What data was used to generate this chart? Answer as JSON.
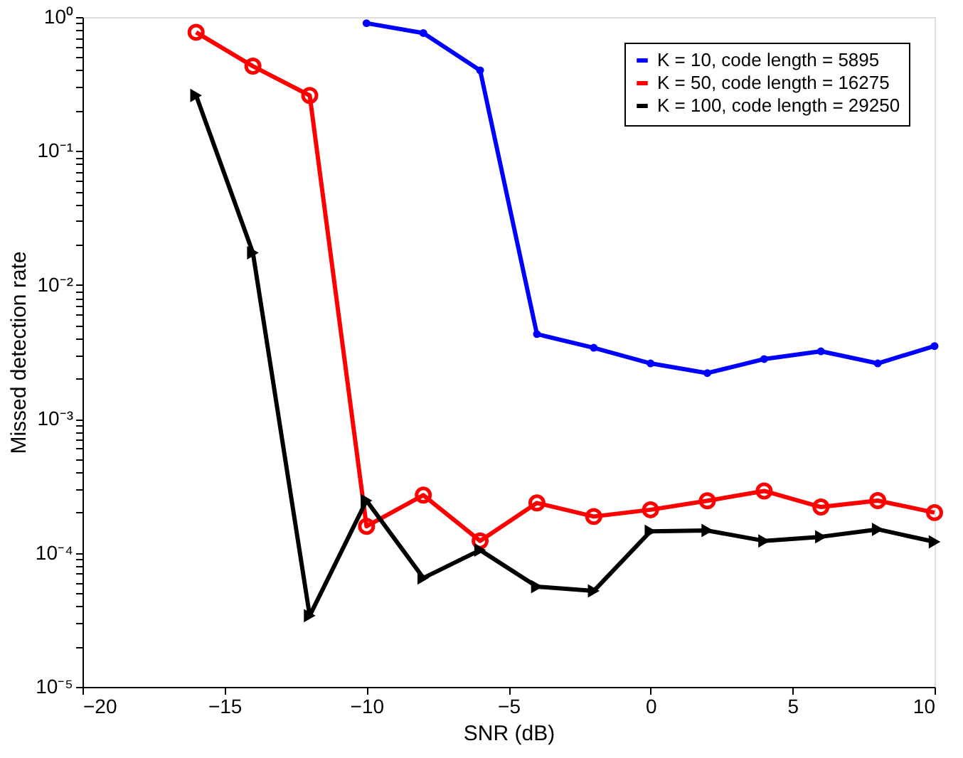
{
  "chart_data": {
    "type": "line",
    "xlabel": "SNR (dB)",
    "ylabel": "Missed detection rate",
    "log": "y",
    "grid": false,
    "legend": "top right",
    "xlim": [
      -20,
      10
    ],
    "xticks": [
      {
        "value": -20,
        "label": "−20"
      },
      {
        "value": -15,
        "label": "−15"
      },
      {
        "value": -10,
        "label": "−10"
      },
      {
        "value": -5,
        "label": "−5"
      },
      0,
      5,
      10
    ],
    "ylim": [
      1e-05,
      1
    ],
    "yticks": [
      {
        "value": 1e-05,
        "label": "10⁻⁵"
      },
      {
        "value": 2e-05,
        "label": null
      },
      {
        "value": 3e-05,
        "label": null
      },
      {
        "value": 4e-05,
        "label": null
      },
      {
        "value": 5e-05,
        "label": null
      },
      {
        "value": 6e-05,
        "label": null
      },
      {
        "value": 7e-05,
        "label": null
      },
      {
        "value": 8e-05,
        "label": null
      },
      {
        "value": 9e-05,
        "label": null
      },
      {
        "value": 0.0001,
        "label": "10⁻⁴"
      },
      {
        "value": 0.0002,
        "label": null
      },
      {
        "value": 0.0003,
        "label": null
      },
      {
        "value": 0.0004,
        "label": null
      },
      {
        "value": 0.0005,
        "label": null
      },
      {
        "value": 0.0006,
        "label": null
      },
      {
        "value": 0.0007,
        "label": null
      },
      {
        "value": 0.0008,
        "label": null
      },
      {
        "value": 0.0009,
        "label": null
      },
      {
        "value": 0.001,
        "label": "10⁻³"
      },
      {
        "value": 0.002,
        "label": null
      },
      {
        "value": 0.003,
        "label": null
      },
      {
        "value": 0.004,
        "label": null
      },
      {
        "value": 0.005,
        "label": null
      },
      {
        "value": 0.006,
        "label": null
      },
      {
        "value": 0.007,
        "label": null
      },
      {
        "value": 0.008,
        "label": null
      },
      {
        "value": 0.009,
        "label": null
      },
      {
        "value": 0.01,
        "label": "10⁻²"
      },
      {
        "value": 0.02,
        "label": null
      },
      {
        "value": 0.03,
        "label": null
      },
      {
        "value": 0.04,
        "label": null
      },
      {
        "value": 0.05,
        "label": null
      },
      {
        "value": 0.06,
        "label": null
      },
      {
        "value": 0.07,
        "label": null
      },
      {
        "value": 0.08,
        "label": null
      },
      {
        "value": 0.09,
        "label": null
      },
      {
        "value": 0.1,
        "label": "10⁻¹"
      },
      {
        "value": 0.2,
        "label": null
      },
      {
        "value": 0.3,
        "label": null
      },
      {
        "value": 0.4,
        "label": null
      },
      {
        "value": 0.5,
        "label": null
      },
      {
        "value": 0.6,
        "label": null
      },
      {
        "value": 0.7,
        "label": null
      },
      {
        "value": 0.8,
        "label": null
      },
      {
        "value": 0.9,
        "label": null
      },
      {
        "value": 1,
        "label": "10⁰"
      }
    ],
    "line_style": "solid",
    "series": [
      {
        "name": "K = 10, code length = 5895",
        "color": "#0000ff",
        "marker": "circle",
        "x": [
          -10,
          -8,
          -6,
          -4,
          -2,
          0,
          2,
          4,
          6,
          8,
          10
        ],
        "values": [
          0.9,
          0.76,
          0.4,
          0.0043,
          0.0034,
          0.0026,
          0.0022,
          0.0028,
          0.0032,
          0.0026,
          0.0035
        ]
      },
      {
        "name": "K = 50, code length = 16275",
        "color": "#ff0000",
        "marker": "circle",
        "x": [
          -16,
          -14,
          -12,
          -10,
          -8,
          -6,
          -4,
          -2,
          0,
          2,
          4,
          6,
          8,
          10
        ],
        "values": [
          0.77,
          0.43,
          0.26,
          0.000158,
          0.00027,
          0.000123,
          0.000236,
          0.000187,
          0.00021,
          0.000245,
          0.00029,
          0.00022,
          0.000246,
          0.0002
        ]
      },
      {
        "name": "K = 100, code length = 29250",
        "color": "#000000",
        "marker": "triangle",
        "x": [
          -16,
          -14,
          -12,
          -10,
          -8,
          -6,
          -4,
          -2,
          0,
          2,
          4,
          6,
          8,
          10
        ],
        "values": [
          0.26,
          0.0174,
          3.4e-05,
          0.000246,
          6.5e-05,
          0.000105,
          5.6e-05,
          5.2e-05,
          0.000145,
          0.000147,
          0.000123,
          0.000132,
          0.00015,
          0.000121
        ]
      }
    ]
  }
}
